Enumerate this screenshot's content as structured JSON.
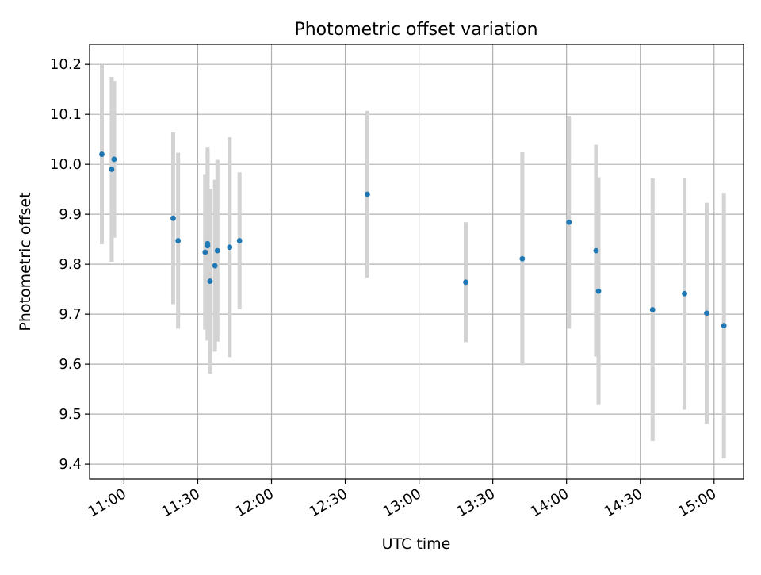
{
  "chart_data": {
    "type": "scatter",
    "title": "Photometric offset variation",
    "xlabel": "UTC time",
    "ylabel": "Photometric offset",
    "xlim": [
      "10:46",
      "15:12"
    ],
    "ylim": [
      9.37,
      10.24
    ],
    "xticks": [
      "11:00",
      "11:30",
      "12:00",
      "12:30",
      "13:00",
      "13:30",
      "14:00",
      "14:30",
      "15:00"
    ],
    "yticks": [
      "9.4",
      "9.5",
      "9.6",
      "9.7",
      "9.8",
      "9.9",
      "10.0",
      "10.1",
      "10.2"
    ],
    "grid": true,
    "colors": {
      "point": "#1f77b4",
      "errorbar": "#d3d3d3",
      "grid": "#b0b0b0"
    },
    "points": [
      {
        "x": "10:51",
        "y": 10.02,
        "err": 0.18
      },
      {
        "x": "10:55",
        "y": 9.99,
        "err": 0.185
      },
      {
        "x": "10:56",
        "y": 10.01,
        "err": 0.157
      },
      {
        "x": "11:20",
        "y": 9.892,
        "err": 0.172
      },
      {
        "x": "11:22",
        "y": 9.847,
        "err": 0.176
      },
      {
        "x": "11:33",
        "y": 9.824,
        "err": 0.155
      },
      {
        "x": "11:34",
        "y": 9.837,
        "err": 0.188
      },
      {
        "x": "11:34",
        "y": 9.841,
        "err": 0.194
      },
      {
        "x": "11:35",
        "y": 9.766,
        "err": 0.185
      },
      {
        "x": "11:37",
        "y": 9.797,
        "err": 0.172
      },
      {
        "x": "11:38",
        "y": 9.827,
        "err": 0.182
      },
      {
        "x": "11:43",
        "y": 9.834,
        "err": 0.22
      },
      {
        "x": "11:47",
        "y": 9.847,
        "err": 0.137
      },
      {
        "x": "12:39",
        "y": 9.94,
        "err": 0.167
      },
      {
        "x": "13:19",
        "y": 9.764,
        "err": 0.12
      },
      {
        "x": "13:42",
        "y": 9.811,
        "err": 0.213
      },
      {
        "x": "14:01",
        "y": 9.884,
        "err": 0.213
      },
      {
        "x": "14:12",
        "y": 9.827,
        "err": 0.212
      },
      {
        "x": "14:13",
        "y": 9.746,
        "err": 0.228
      },
      {
        "x": "14:35",
        "y": 9.709,
        "err": 0.263
      },
      {
        "x": "14:48",
        "y": 9.741,
        "err": 0.232
      },
      {
        "x": "14:57",
        "y": 9.702,
        "err": 0.221
      },
      {
        "x": "15:04",
        "y": 9.677,
        "err": 0.266
      }
    ]
  }
}
